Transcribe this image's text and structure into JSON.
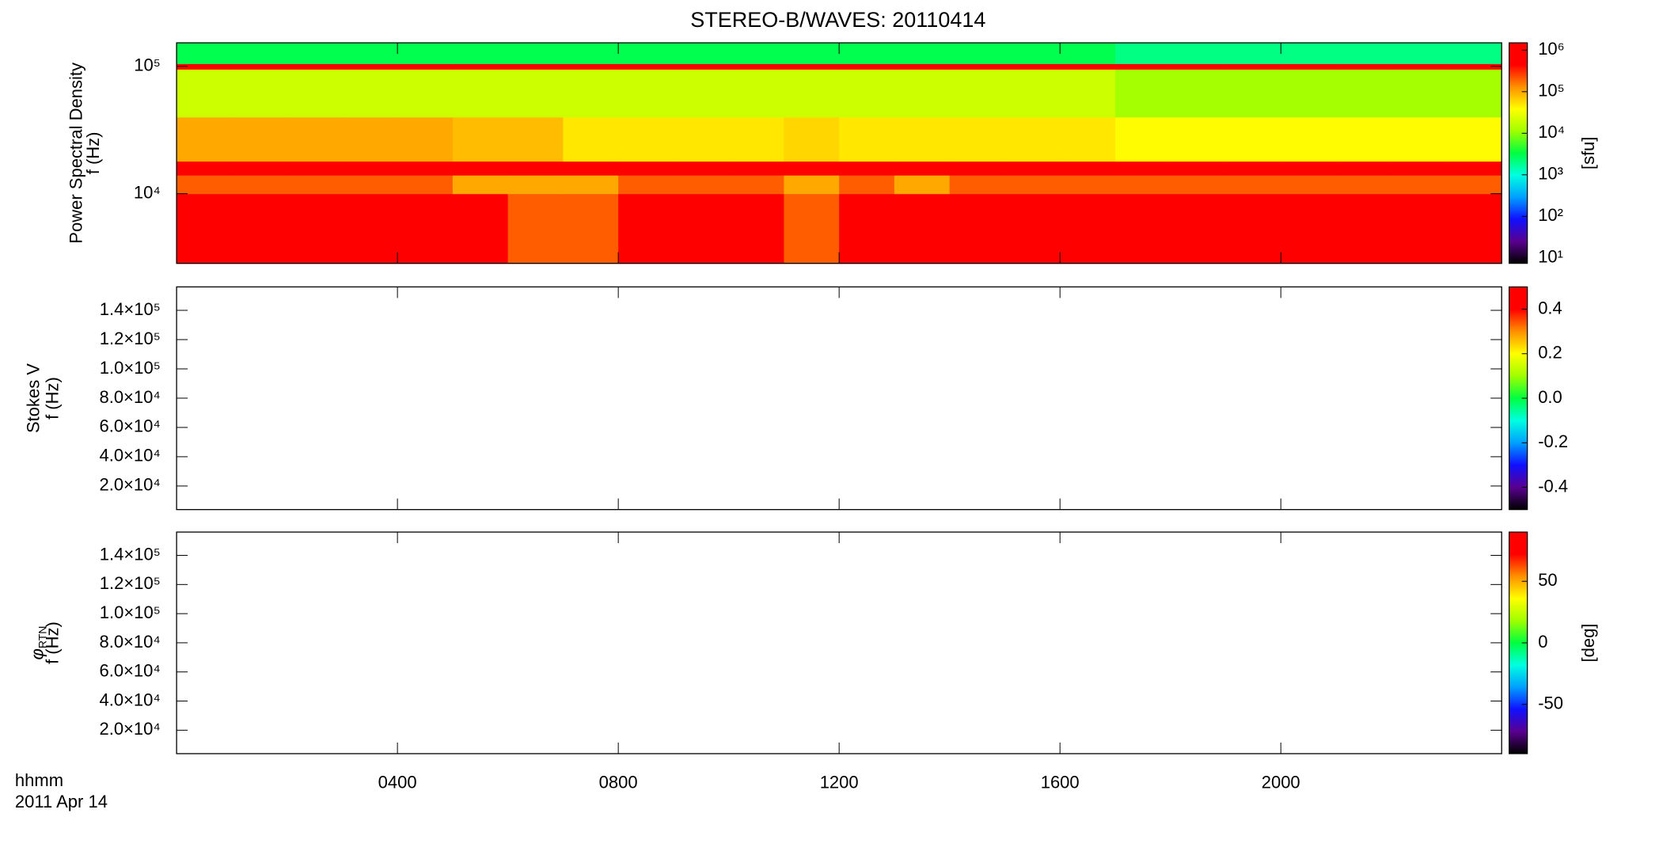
{
  "colormap": [
    "#000000",
    "#5a0090",
    "#1010ff",
    "#00a0ff",
    "#00ffe0",
    "#00ff40",
    "#a0ff00",
    "#ffff00",
    "#ff9000",
    "#ff0000",
    "#ff0000"
  ],
  "chart_data": [
    {
      "type": "heatmap",
      "title": "STEREO-B/WAVES: 20110414",
      "ylabel": "Power Spectral Density",
      "ylabel2": "f (Hz)",
      "ylog": true,
      "ylim": [
        2840,
        153000
      ],
      "yticks": [
        {
          "value": 10000,
          "label": "10⁴"
        },
        {
          "value": 100000,
          "label": "10⁵"
        }
      ],
      "xlim": [
        0,
        24
      ],
      "x_bins": [
        0,
        1,
        2,
        3,
        4,
        5,
        6,
        7,
        8,
        9,
        10,
        11,
        12,
        13,
        14,
        15,
        16,
        17,
        18,
        19,
        20,
        21,
        22,
        23,
        24
      ],
      "y_bins": [
        2840,
        10000,
        14000,
        18000,
        40000,
        95000,
        105000,
        153000
      ],
      "z": [
        [
          1000000,
          1000000,
          1000000,
          1000000,
          1000000,
          500000,
          200000,
          200000,
          1000000,
          1000000,
          1000000,
          200000,
          500000,
          500000,
          1000000,
          1000000,
          1000000,
          1000000,
          1000000,
          1000000,
          1000000,
          1000000,
          1000000,
          1000000
        ],
        [
          200000,
          200000,
          200000,
          200000,
          200000,
          100000,
          100000,
          100000,
          200000,
          200000,
          200000,
          100000,
          200000,
          100000,
          200000,
          200000,
          200000,
          200000,
          200000,
          200000,
          200000,
          200000,
          200000,
          200000
        ],
        [
          1000000,
          1000000,
          1000000,
          1000000,
          1000000,
          1000000,
          1000000,
          1000000,
          1000000,
          1000000,
          1000000,
          1000000,
          1000000,
          1000000,
          1000000,
          1000000,
          1000000,
          1000000,
          1000000,
          1000000,
          1000000,
          1000000,
          1000000,
          1000000
        ],
        [
          100000,
          100000,
          100000,
          100000,
          100000,
          80000,
          80000,
          50000,
          50000,
          50000,
          50000,
          60000,
          50000,
          50000,
          50000,
          50000,
          50000,
          40000,
          40000,
          40000,
          40000,
          40000,
          40000,
          40000
        ],
        [
          20000,
          20000,
          20000,
          20000,
          20000,
          20000,
          20000,
          20000,
          20000,
          20000,
          20000,
          20000,
          20000,
          20000,
          20000,
          20000,
          20000,
          12000,
          12000,
          12000,
          12000,
          12000,
          12000,
          12000
        ],
        [
          1000000,
          1000000,
          1000000,
          1000000,
          1000000,
          1000000,
          1000000,
          1000000,
          1000000,
          1000000,
          1000000,
          1000000,
          1000000,
          1000000,
          1000000,
          1000000,
          1000000,
          1000000,
          1000000,
          1000000,
          1000000,
          1000000,
          1000000,
          1000000
        ],
        [
          3000,
          3000,
          3000,
          3000,
          3000,
          3000,
          3000,
          3000,
          3000,
          3000,
          3000,
          3000,
          3000,
          3000,
          3000,
          3000,
          3000,
          2000,
          2000,
          2000,
          2000,
          2000,
          2000,
          2000
        ]
      ],
      "zlog": true,
      "zlim": [
        7.4,
        1500000
      ],
      "zticks": [
        {
          "value": 10,
          "label": "10¹"
        },
        {
          "value": 100,
          "label": "10²"
        },
        {
          "value": 1000,
          "label": "10³"
        },
        {
          "value": 10000,
          "label": "10⁴"
        },
        {
          "value": 100000,
          "label": "10⁵"
        },
        {
          "value": 1000000,
          "label": "10⁶"
        }
      ],
      "zlabel": "[sfu]"
    },
    {
      "type": "heatmap",
      "ylabel": "Stokes V",
      "ylabel2": "f (Hz)",
      "ylim": [
        3900,
        156000
      ],
      "yticks": [
        {
          "value": 20000,
          "label": "2.0×10⁴"
        },
        {
          "value": 40000,
          "label": "4.0×10⁴"
        },
        {
          "value": 60000,
          "label": "6.0×10⁴"
        },
        {
          "value": 80000,
          "label": "8.0×10⁴"
        },
        {
          "value": 100000,
          "label": "1.0×10⁵"
        },
        {
          "value": 120000,
          "label": "1.2×10⁵"
        },
        {
          "value": 140000,
          "label": "1.4×10⁵"
        }
      ],
      "xlim": [
        0,
        24
      ],
      "zlim": [
        -0.5,
        0.5
      ],
      "zticks": [
        -0.4,
        -0.2,
        {
          "value": 0,
          "label": "0.0"
        },
        0.2,
        0.4
      ]
    },
    {
      "type": "heatmap",
      "ylabel": "φ",
      "ylabel_sub": "RTN",
      "ylabel2": "f (Hz)",
      "ylim": [
        3900,
        156000
      ],
      "yticks": [
        {
          "value": 20000,
          "label": "2.0×10⁴"
        },
        {
          "value": 40000,
          "label": "4.0×10⁴"
        },
        {
          "value": 60000,
          "label": "6.0×10⁴"
        },
        {
          "value": 80000,
          "label": "8.0×10⁴"
        },
        {
          "value": 100000,
          "label": "1.0×10⁵"
        },
        {
          "value": 120000,
          "label": "1.2×10⁵"
        },
        {
          "value": 140000,
          "label": "1.4×10⁵"
        }
      ],
      "xlim": [
        0,
        24
      ],
      "xticks": [
        {
          "value": 4,
          "label": "0400"
        },
        {
          "value": 8,
          "label": "0800"
        },
        {
          "value": 12,
          "label": "1200"
        },
        {
          "value": 16,
          "label": "1600"
        },
        {
          "value": 20,
          "label": "2000"
        }
      ],
      "xlabel": "hhmm",
      "date_label": "2011 Apr 14",
      "zlim": [
        -90,
        90
      ],
      "zticks": [
        -50,
        0,
        50
      ],
      "zlabel": "[deg]"
    }
  ]
}
